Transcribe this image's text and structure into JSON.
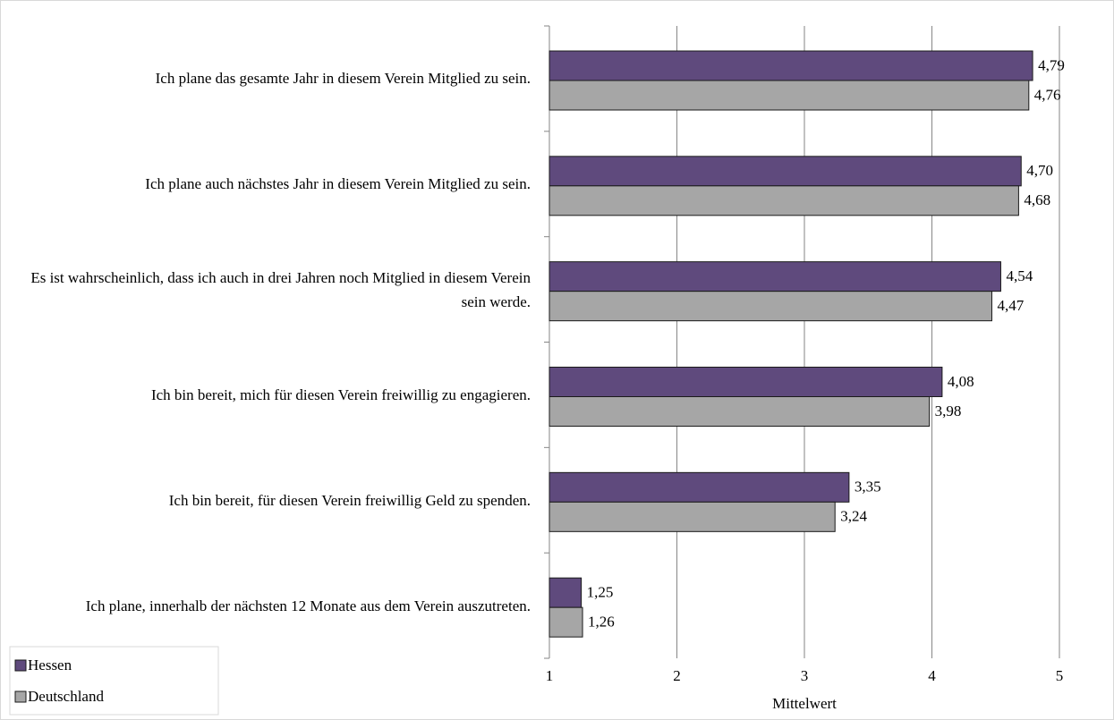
{
  "chart_data": {
    "type": "barh",
    "categories": [
      "Ich plane das gesamte Jahr in diesem Verein Mitglied zu sein.",
      "Ich plane auch nächstes Jahr in diesem Verein Mitglied zu sein.",
      "Es ist wahrscheinlich, dass ich auch in drei Jahren noch Mitglied in diesem Verein sein werde.",
      "Ich bin bereit, mich für diesen Verein freiwillig zu engagieren.",
      "Ich bin bereit, für diesen Verein freiwillig Geld zu spenden.",
      "Ich plane, innerhalb der nächsten 12 Monate aus dem Verein auszutreten."
    ],
    "series": [
      {
        "name": "Hessen",
        "color": "#5f4a7d",
        "values": [
          4.79,
          4.7,
          4.54,
          4.08,
          3.35,
          1.25
        ],
        "value_labels": [
          "4,79",
          "4,70",
          "4,54",
          "4,08",
          "3,35",
          "1,25"
        ]
      },
      {
        "name": "Deutschland",
        "color": "#a6a6a6",
        "values": [
          4.76,
          4.68,
          4.47,
          3.98,
          3.24,
          1.26
        ],
        "value_labels": [
          "4,76",
          "4,68",
          "4,47",
          "3,98",
          "3,24",
          "1,26"
        ]
      }
    ],
    "x_label": "Mittelwert",
    "xlim": [
      1,
      5
    ],
    "xticks": [
      1,
      2,
      3,
      4,
      5
    ],
    "grid": true,
    "legend": "lower left"
  }
}
